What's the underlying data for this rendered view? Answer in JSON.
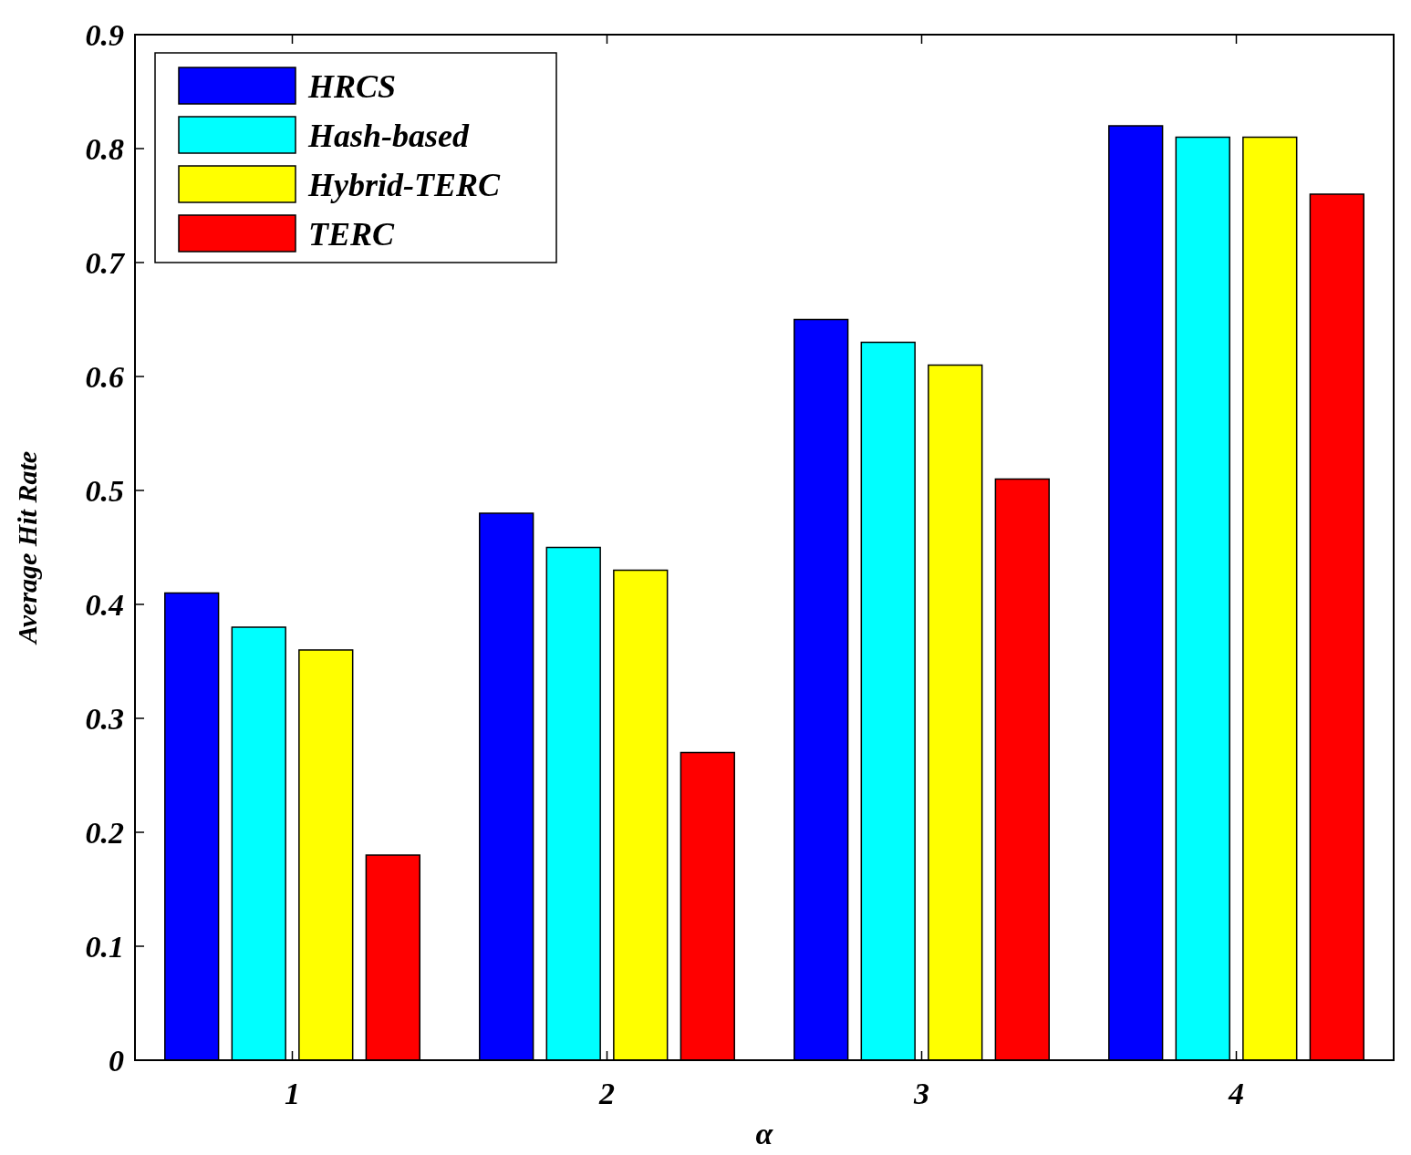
{
  "chart_data": {
    "type": "bar",
    "xlabel": "α",
    "ylabel": "Average Hit Rate",
    "categories": [
      "1",
      "2",
      "3",
      "4"
    ],
    "series": [
      {
        "name": "HRCS",
        "color": "#0000ff",
        "values": [
          0.41,
          0.48,
          0.65,
          0.82
        ]
      },
      {
        "name": "Hash-based",
        "color": "#00ffff",
        "values": [
          0.38,
          0.45,
          0.63,
          0.81
        ]
      },
      {
        "name": "Hybrid-TERC",
        "color": "#ffff00",
        "values": [
          0.36,
          0.43,
          0.61,
          0.81
        ]
      },
      {
        "name": "TERC",
        "color": "#ff0000",
        "values": [
          0.18,
          0.27,
          0.51,
          0.76
        ]
      }
    ],
    "ylim": [
      0,
      0.9
    ],
    "yticks": [
      0,
      0.1,
      0.2,
      0.3,
      0.4,
      0.5,
      0.6,
      0.7,
      0.8,
      0.9
    ],
    "legend": "top left",
    "grid": false
  }
}
